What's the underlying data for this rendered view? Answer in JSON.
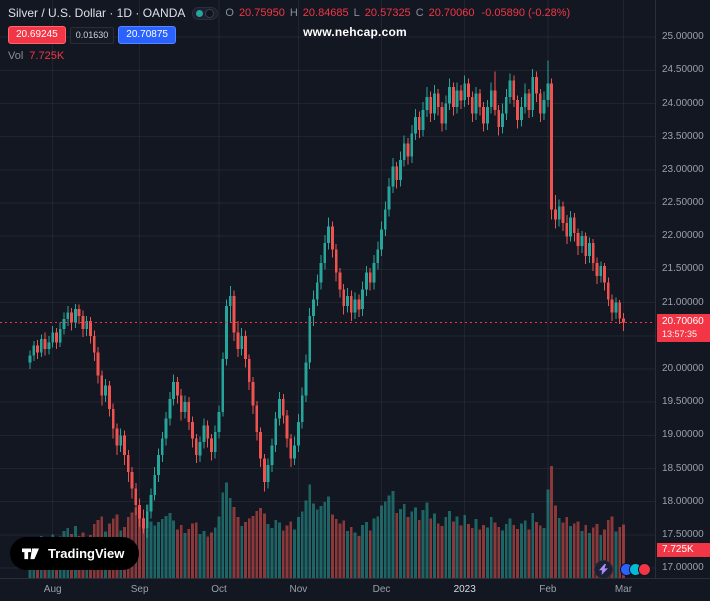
{
  "header": {
    "symbol_title": "Silver / U.S. Dollar · 1D · OANDA",
    "ohlc": {
      "o_label": "O",
      "o": "20.75950",
      "h_label": "H",
      "h": "20.84685",
      "l_label": "L",
      "l": "20.57325",
      "c_label": "C",
      "c": "20.70060",
      "change": "-0.05890 (-0.28%)"
    },
    "sell_price": "20.69245",
    "spread": "0.01630",
    "buy_price": "20.70875",
    "vol_label": "Vol",
    "vol_value": "7.725K"
  },
  "watermark": "www.nehcap.com",
  "logo": {
    "text": "TradingView"
  },
  "price_axis": {
    "last_price_label": "20.70060",
    "countdown": "13:57:35",
    "volume_label": "7.725K"
  },
  "time_axis": {
    "labels": [
      {
        "text": "Aug",
        "index": 6,
        "year": false
      },
      {
        "text": "Sep",
        "index": 29,
        "year": false
      },
      {
        "text": "Oct",
        "index": 50,
        "year": false
      },
      {
        "text": "Nov",
        "index": 71,
        "year": false
      },
      {
        "text": "Dec",
        "index": 93,
        "year": false
      },
      {
        "text": "2023",
        "index": 115,
        "year": true
      },
      {
        "text": "Feb",
        "index": 137,
        "year": false
      },
      {
        "text": "Mar",
        "index": 157,
        "year": false
      }
    ]
  },
  "colors": {
    "background": "#131722",
    "up": "#26a69a",
    "down": "#ef5350",
    "vol_up": "rgba(38,166,154,0.55)",
    "vol_down": "rgba(239,83,80,0.55)",
    "grid": "rgba(255,255,255,0.06)",
    "accent_red": "#f23645",
    "accent_blue": "#2962ff",
    "axis_text": "#9aa0aa"
  },
  "chart_data": {
    "type": "candlestick",
    "title": "Silver / U.S. Dollar · 1D · OANDA",
    "timeframe": "1D",
    "source": "OANDA",
    "last_price": 20.7006,
    "last_volume_k": 7.725,
    "price_axis": {
      "min": 17.0,
      "max": 25.0,
      "step": 0.5,
      "decimals": 5
    },
    "x_axis_months": [
      "Aug",
      "Sep",
      "Oct",
      "Nov",
      "Dec",
      "2023",
      "Feb",
      "Mar"
    ],
    "volume_unit": "K",
    "candles": [
      [
        20.1,
        20.28,
        20.0,
        20.2,
        5.2
      ],
      [
        20.2,
        20.42,
        20.12,
        20.35,
        4.8
      ],
      [
        20.35,
        20.44,
        20.15,
        20.25,
        5.5
      ],
      [
        20.25,
        20.52,
        20.18,
        20.45,
        6.1
      ],
      [
        20.45,
        20.55,
        20.2,
        20.3,
        5.0
      ],
      [
        20.3,
        20.5,
        20.22,
        20.4,
        4.6
      ],
      [
        20.4,
        20.65,
        20.32,
        20.55,
        6.3
      ],
      [
        20.55,
        20.62,
        20.3,
        20.4,
        5.7
      ],
      [
        20.4,
        20.7,
        20.33,
        20.6,
        6.0
      ],
      [
        20.6,
        20.85,
        20.52,
        20.75,
        6.8
      ],
      [
        20.75,
        20.95,
        20.65,
        20.85,
        7.2
      ],
      [
        20.85,
        20.92,
        20.58,
        20.7,
        6.4
      ],
      [
        20.7,
        20.98,
        20.62,
        20.9,
        7.5
      ],
      [
        20.9,
        20.97,
        20.68,
        20.8,
        6.1
      ],
      [
        20.8,
        20.88,
        20.48,
        20.6,
        6.6
      ],
      [
        20.6,
        20.8,
        20.5,
        20.72,
        5.9
      ],
      [
        20.72,
        20.78,
        20.38,
        20.5,
        6.2
      ],
      [
        20.5,
        20.58,
        20.12,
        20.25,
        7.8
      ],
      [
        20.25,
        20.33,
        19.78,
        19.9,
        8.4
      ],
      [
        19.9,
        19.98,
        19.45,
        19.6,
        8.9
      ],
      [
        19.6,
        19.85,
        19.5,
        19.75,
        6.7
      ],
      [
        19.75,
        19.82,
        19.28,
        19.4,
        7.9
      ],
      [
        19.4,
        19.48,
        18.95,
        19.1,
        8.6
      ],
      [
        19.1,
        19.18,
        18.7,
        18.85,
        9.2
      ],
      [
        18.85,
        19.1,
        18.75,
        19.0,
        6.9
      ],
      [
        19.0,
        19.07,
        18.55,
        18.7,
        7.4
      ],
      [
        18.7,
        18.78,
        18.3,
        18.45,
        8.8
      ],
      [
        18.45,
        18.52,
        18.05,
        18.2,
        9.5
      ],
      [
        18.2,
        18.28,
        17.8,
        17.95,
        10.2
      ],
      [
        17.95,
        18.05,
        17.62,
        17.75,
        9.8
      ],
      [
        17.75,
        17.88,
        17.52,
        17.6,
        8.7
      ],
      [
        17.6,
        17.95,
        17.45,
        17.85,
        10.6
      ],
      [
        17.85,
        18.2,
        17.75,
        18.1,
        8.2
      ],
      [
        18.1,
        18.52,
        18.02,
        18.4,
        7.6
      ],
      [
        18.4,
        18.8,
        18.3,
        18.7,
        8.1
      ],
      [
        18.7,
        19.05,
        18.6,
        18.95,
        8.5
      ],
      [
        18.95,
        19.35,
        18.85,
        19.25,
        9.0
      ],
      [
        19.25,
        19.65,
        19.15,
        19.55,
        9.4
      ],
      [
        19.55,
        19.92,
        19.45,
        19.8,
        8.3
      ],
      [
        19.8,
        19.88,
        19.48,
        19.6,
        7.0
      ],
      [
        19.6,
        19.7,
        19.22,
        19.35,
        7.7
      ],
      [
        19.35,
        19.6,
        19.25,
        19.5,
        6.5
      ],
      [
        19.5,
        19.58,
        19.08,
        19.2,
        7.1
      ],
      [
        19.2,
        19.28,
        18.82,
        18.95,
        7.9
      ],
      [
        18.95,
        19.02,
        18.58,
        18.7,
        8.0
      ],
      [
        18.7,
        18.98,
        18.6,
        18.9,
        6.4
      ],
      [
        18.9,
        19.25,
        18.8,
        19.15,
        6.8
      ],
      [
        19.15,
        19.22,
        18.82,
        18.95,
        6.0
      ],
      [
        18.95,
        19.02,
        18.62,
        18.75,
        6.6
      ],
      [
        18.75,
        19.15,
        18.65,
        19.05,
        7.3
      ],
      [
        19.05,
        19.45,
        18.95,
        19.35,
        8.9
      ],
      [
        19.35,
        20.25,
        19.28,
        20.15,
        12.4
      ],
      [
        20.15,
        21.05,
        20.05,
        20.95,
        13.8
      ],
      [
        20.95,
        21.25,
        20.7,
        21.1,
        11.6
      ],
      [
        21.1,
        21.18,
        20.42,
        20.55,
        10.3
      ],
      [
        20.55,
        20.72,
        20.18,
        20.3,
        8.8
      ],
      [
        20.3,
        20.62,
        20.2,
        20.5,
        7.5
      ],
      [
        20.5,
        20.58,
        20.02,
        20.15,
        8.1
      ],
      [
        20.15,
        20.22,
        19.68,
        19.8,
        8.6
      ],
      [
        19.8,
        19.88,
        19.32,
        19.45,
        9.0
      ],
      [
        19.45,
        19.52,
        18.92,
        19.05,
        9.7
      ],
      [
        19.05,
        19.12,
        18.52,
        18.65,
        10.1
      ],
      [
        18.65,
        18.72,
        18.15,
        18.3,
        9.3
      ],
      [
        18.3,
        18.65,
        18.2,
        18.55,
        7.8
      ],
      [
        18.55,
        18.95,
        18.45,
        18.85,
        7.2
      ],
      [
        18.85,
        19.35,
        18.75,
        19.25,
        8.4
      ],
      [
        19.25,
        19.65,
        19.15,
        19.55,
        8.0
      ],
      [
        19.55,
        19.62,
        19.18,
        19.3,
        6.9
      ],
      [
        19.3,
        19.38,
        18.82,
        18.95,
        7.6
      ],
      [
        18.95,
        19.02,
        18.52,
        18.65,
        8.2
      ],
      [
        18.65,
        18.98,
        18.55,
        18.85,
        7.0
      ],
      [
        18.85,
        19.32,
        18.75,
        19.2,
        8.8
      ],
      [
        19.2,
        19.72,
        19.1,
        19.6,
        9.6
      ],
      [
        19.6,
        20.22,
        19.5,
        20.1,
        11.2
      ],
      [
        20.1,
        20.92,
        20.0,
        20.8,
        13.5
      ],
      [
        20.8,
        21.18,
        20.65,
        21.05,
        10.8
      ],
      [
        21.05,
        21.42,
        20.95,
        21.3,
        9.9
      ],
      [
        21.3,
        21.72,
        21.2,
        21.6,
        10.4
      ],
      [
        21.6,
        22.02,
        21.5,
        21.9,
        11.0
      ],
      [
        21.9,
        22.28,
        21.8,
        22.15,
        11.8
      ],
      [
        22.15,
        22.22,
        21.68,
        21.8,
        9.2
      ],
      [
        21.8,
        21.88,
        21.32,
        21.45,
        8.5
      ],
      [
        21.45,
        21.52,
        21.08,
        21.2,
        7.9
      ],
      [
        21.2,
        21.28,
        20.82,
        20.95,
        8.3
      ],
      [
        20.95,
        21.22,
        20.85,
        21.1,
        6.8
      ],
      [
        21.1,
        21.18,
        20.72,
        20.85,
        7.4
      ],
      [
        20.85,
        21.15,
        20.75,
        21.05,
        6.6
      ],
      [
        21.05,
        21.12,
        20.78,
        20.9,
        6.1
      ],
      [
        20.9,
        21.32,
        20.8,
        21.2,
        7.7
      ],
      [
        21.2,
        21.55,
        21.1,
        21.45,
        8.1
      ],
      [
        21.45,
        21.52,
        21.18,
        21.3,
        6.9
      ],
      [
        21.3,
        21.72,
        21.2,
        21.6,
        8.6
      ],
      [
        21.6,
        21.92,
        21.5,
        21.8,
        8.9
      ],
      [
        21.8,
        22.22,
        21.7,
        22.1,
        10.5
      ],
      [
        22.1,
        22.52,
        22.0,
        22.4,
        11.1
      ],
      [
        22.4,
        22.88,
        22.3,
        22.75,
        11.9
      ],
      [
        22.75,
        23.18,
        22.65,
        23.05,
        12.6
      ],
      [
        23.05,
        23.12,
        22.72,
        22.85,
        9.4
      ],
      [
        22.85,
        23.28,
        22.75,
        23.15,
        10.0
      ],
      [
        23.15,
        23.52,
        23.05,
        23.4,
        10.7
      ],
      [
        23.4,
        23.48,
        23.08,
        23.2,
        8.8
      ],
      [
        23.2,
        23.68,
        23.1,
        23.55,
        9.6
      ],
      [
        23.55,
        23.92,
        23.45,
        23.8,
        10.2
      ],
      [
        23.8,
        23.88,
        23.48,
        23.6,
        8.4
      ],
      [
        23.6,
        24.02,
        23.5,
        23.9,
        9.8
      ],
      [
        23.9,
        24.25,
        23.8,
        24.1,
        10.9
      ],
      [
        24.1,
        24.18,
        23.72,
        23.85,
        8.6
      ],
      [
        23.85,
        24.28,
        23.75,
        24.15,
        9.3
      ],
      [
        24.15,
        24.22,
        23.82,
        23.95,
        7.9
      ],
      [
        23.95,
        24.02,
        23.58,
        23.7,
        7.5
      ],
      [
        23.7,
        24.12,
        23.6,
        24.0,
        8.8
      ],
      [
        24.0,
        24.38,
        23.9,
        24.25,
        9.7
      ],
      [
        24.25,
        24.32,
        23.82,
        23.95,
        8.2
      ],
      [
        23.95,
        24.32,
        23.85,
        24.2,
        8.9
      ],
      [
        24.2,
        24.28,
        23.92,
        24.05,
        7.6
      ],
      [
        24.05,
        24.42,
        23.95,
        24.3,
        9.1
      ],
      [
        24.3,
        24.38,
        23.98,
        24.1,
        7.8
      ],
      [
        24.1,
        24.18,
        23.72,
        23.85,
        7.2
      ],
      [
        23.85,
        24.25,
        23.75,
        24.15,
        8.5
      ],
      [
        24.15,
        24.22,
        23.82,
        23.95,
        7.0
      ],
      [
        23.95,
        24.02,
        23.58,
        23.7,
        7.7
      ],
      [
        23.7,
        24.05,
        23.6,
        23.95,
        7.3
      ],
      [
        23.95,
        24.32,
        23.85,
        24.2,
        8.8
      ],
      [
        24.2,
        24.48,
        23.82,
        23.9,
        8.0
      ],
      [
        23.9,
        23.98,
        23.52,
        23.65,
        7.4
      ],
      [
        23.65,
        24.0,
        23.55,
        23.85,
        6.9
      ],
      [
        23.85,
        24.22,
        23.75,
        24.1,
        7.8
      ],
      [
        24.1,
        24.45,
        24.0,
        24.35,
        8.6
      ],
      [
        24.35,
        24.42,
        23.95,
        24.05,
        7.7
      ],
      [
        24.05,
        24.12,
        23.62,
        23.75,
        7.1
      ],
      [
        23.75,
        24.1,
        23.65,
        23.95,
        7.9
      ],
      [
        23.95,
        24.3,
        23.85,
        24.15,
        8.3
      ],
      [
        24.15,
        24.22,
        23.78,
        23.9,
        7.0
      ],
      [
        23.9,
        24.52,
        23.8,
        24.4,
        9.4
      ],
      [
        24.4,
        24.48,
        24.02,
        24.15,
        8.1
      ],
      [
        24.15,
        24.22,
        23.72,
        23.85,
        7.6
      ],
      [
        23.85,
        24.18,
        23.75,
        24.05,
        7.2
      ],
      [
        24.05,
        24.65,
        23.95,
        24.3,
        12.8
      ],
      [
        24.3,
        24.38,
        22.25,
        22.4,
        16.2
      ],
      [
        22.4,
        22.62,
        22.12,
        22.25,
        10.5
      ],
      [
        22.25,
        22.55,
        22.15,
        22.45,
        8.7
      ],
      [
        22.45,
        22.52,
        22.08,
        22.2,
        8.0
      ],
      [
        22.2,
        22.32,
        21.88,
        22.0,
        8.8
      ],
      [
        22.0,
        22.38,
        21.92,
        22.28,
        7.5
      ],
      [
        22.28,
        22.35,
        21.92,
        22.05,
        7.9
      ],
      [
        22.05,
        22.12,
        21.72,
        21.85,
        8.2
      ],
      [
        21.85,
        22.08,
        21.75,
        22.0,
        6.8
      ],
      [
        22.0,
        22.06,
        21.58,
        21.7,
        7.7
      ],
      [
        21.7,
        21.98,
        21.6,
        21.9,
        6.5
      ],
      [
        21.9,
        21.96,
        21.48,
        21.6,
        7.3
      ],
      [
        21.6,
        21.68,
        21.28,
        21.4,
        7.8
      ],
      [
        21.4,
        21.62,
        21.3,
        21.55,
        6.2
      ],
      [
        21.55,
        21.6,
        21.18,
        21.3,
        7.0
      ],
      [
        21.3,
        21.38,
        20.95,
        21.05,
        8.4
      ],
      [
        21.05,
        21.12,
        20.72,
        20.85,
        8.9
      ],
      [
        20.85,
        21.08,
        20.75,
        21.0,
        6.7
      ],
      [
        21.0,
        21.04,
        20.68,
        20.76,
        7.4
      ],
      [
        20.7595,
        20.84685,
        20.57325,
        20.7006,
        7.725
      ]
    ]
  }
}
